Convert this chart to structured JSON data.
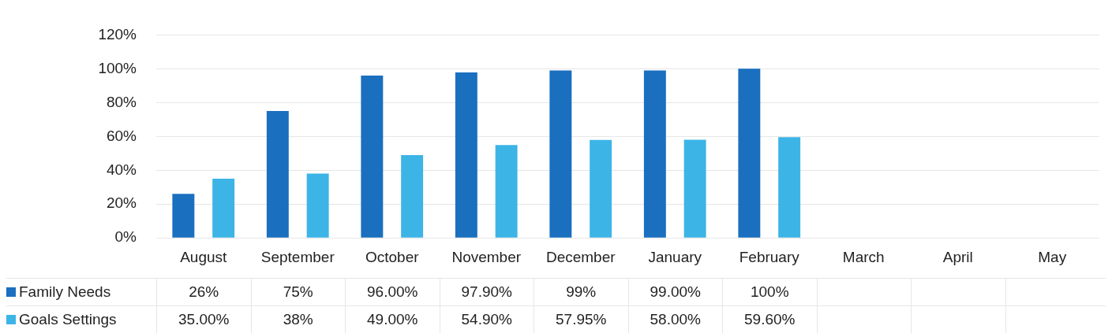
{
  "chart_data": {
    "type": "bar",
    "categories": [
      "August",
      "September",
      "October",
      "November",
      "December",
      "January",
      "February",
      "March",
      "April",
      "May"
    ],
    "series": [
      {
        "name": "Family Needs",
        "color": "#1a6fbf",
        "values": [
          26,
          75,
          96,
          97.9,
          99,
          99,
          100,
          null,
          null,
          null
        ],
        "value_labels": [
          "26%",
          "75%",
          "96.00%",
          "97.90%",
          "99%",
          "99.00%",
          "100%",
          null,
          null,
          null
        ]
      },
      {
        "name": "Goals Settings",
        "color": "#3cb4e6",
        "values": [
          35,
          38,
          49,
          54.9,
          57.95,
          58,
          59.6,
          null,
          null,
          null
        ],
        "value_labels": [
          "35.00%",
          "38%",
          "49.00%",
          "54.90%",
          "57.95%",
          "58.00%",
          "59.60%",
          null,
          null,
          null
        ]
      }
    ],
    "ylim": [
      0,
      120
    ],
    "yticks": [
      {
        "value": 0,
        "label": "0%"
      },
      {
        "value": 20,
        "label": "20%"
      },
      {
        "value": 40,
        "label": "40%"
      },
      {
        "value": 60,
        "label": "60%"
      },
      {
        "value": 80,
        "label": "80%"
      },
      {
        "value": 100,
        "label": "100%"
      },
      {
        "value": 120,
        "label": "120%"
      }
    ],
    "grid": "y",
    "legend": "bottom"
  }
}
